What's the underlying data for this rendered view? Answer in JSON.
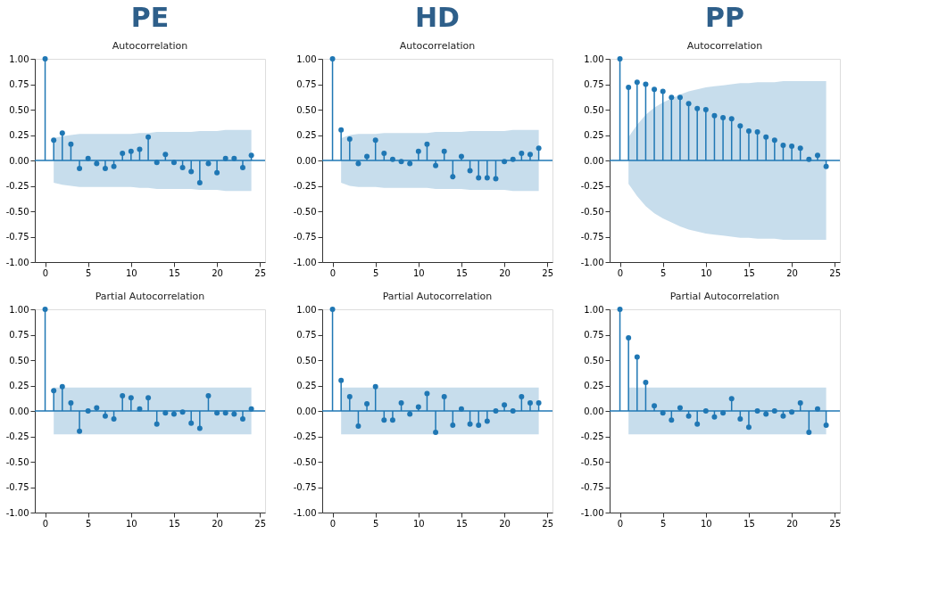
{
  "chart_data": [
    {
      "type": "lollipop",
      "title": "PE",
      "subtitle": "Autocorrelation",
      "marker": "circle",
      "grid": false,
      "x": [
        0,
        1,
        2,
        3,
        4,
        5,
        6,
        7,
        8,
        9,
        10,
        11,
        12,
        13,
        14,
        15,
        16,
        17,
        18,
        19,
        20,
        21,
        22,
        23,
        24
      ],
      "xlim": [
        -1.2,
        25.6
      ],
      "xticks": [
        0,
        5,
        10,
        15,
        20,
        25
      ],
      "ylim": [
        -1,
        1
      ],
      "yticks": [
        {
          "value": -1,
          "label": "-1.00"
        },
        {
          "value": -0.75,
          "label": "-0.75"
        },
        {
          "value": -0.5,
          "label": "-0.50"
        },
        {
          "value": -0.25,
          "label": "-0.25"
        },
        {
          "value": 0,
          "label": "0.00"
        },
        {
          "value": 0.25,
          "label": "0.25"
        },
        {
          "value": 0.5,
          "label": "0.50"
        },
        {
          "value": 0.75,
          "label": "0.75"
        },
        {
          "value": 1,
          "label": "1.00"
        }
      ],
      "ref_lines": [
        {
          "axis": "y",
          "value": 0,
          "color": "#1f77b4"
        }
      ],
      "series": [
        {
          "color": "#1f77b4",
          "values": [
            1,
            0.2,
            0.27,
            0.16,
            -0.08,
            0.02,
            -0.03,
            -0.08,
            -0.06,
            0.07,
            0.09,
            0.11,
            0.23,
            -0.02,
            0.06,
            -0.02,
            -0.07,
            -0.11,
            -0.22,
            -0.03,
            -0.12,
            0.02,
            0.02,
            -0.07,
            0.05
          ],
          "upper": [
            null,
            0.22,
            0.24,
            0.25,
            0.26,
            0.26,
            0.26,
            0.26,
            0.26,
            0.26,
            0.26,
            0.27,
            0.27,
            0.28,
            0.28,
            0.28,
            0.28,
            0.28,
            0.29,
            0.29,
            0.29,
            0.3,
            0.3,
            0.3,
            0.3
          ],
          "lower": [
            null,
            -0.22,
            -0.24,
            -0.25,
            -0.26,
            -0.26,
            -0.26,
            -0.26,
            -0.26,
            -0.26,
            -0.26,
            -0.27,
            -0.27,
            -0.28,
            -0.28,
            -0.28,
            -0.28,
            -0.28,
            -0.29,
            -0.29,
            -0.29,
            -0.3,
            -0.3,
            -0.3,
            -0.3
          ]
        }
      ]
    },
    {
      "type": "lollipop",
      "title": "HD",
      "subtitle": "Autocorrelation",
      "marker": "circle",
      "grid": false,
      "x": [
        0,
        1,
        2,
        3,
        4,
        5,
        6,
        7,
        8,
        9,
        10,
        11,
        12,
        13,
        14,
        15,
        16,
        17,
        18,
        19,
        20,
        21,
        22,
        23,
        24
      ],
      "xlim": [
        -1.2,
        25.6
      ],
      "xticks": [
        0,
        5,
        10,
        15,
        20,
        25
      ],
      "ylim": [
        -1,
        1
      ],
      "yticks": [
        {
          "value": -1,
          "label": "-1.00"
        },
        {
          "value": -0.75,
          "label": "-0.75"
        },
        {
          "value": -0.5,
          "label": "-0.50"
        },
        {
          "value": -0.25,
          "label": "-0.25"
        },
        {
          "value": 0,
          "label": "0.00"
        },
        {
          "value": 0.25,
          "label": "0.25"
        },
        {
          "value": 0.5,
          "label": "0.50"
        },
        {
          "value": 0.75,
          "label": "0.75"
        },
        {
          "value": 1,
          "label": "1.00"
        }
      ],
      "ref_lines": [
        {
          "axis": "y",
          "value": 0,
          "color": "#1f77b4"
        }
      ],
      "series": [
        {
          "color": "#1f77b4",
          "values": [
            1,
            0.3,
            0.21,
            -0.03,
            0.04,
            0.2,
            0.07,
            0.01,
            -0.01,
            -0.03,
            0.09,
            0.16,
            -0.05,
            0.09,
            -0.16,
            0.04,
            -0.1,
            -0.17,
            -0.17,
            -0.18,
            -0.01,
            0.01,
            0.07,
            0.06,
            0.12
          ],
          "upper": [
            null,
            0.22,
            0.25,
            0.26,
            0.26,
            0.26,
            0.27,
            0.27,
            0.27,
            0.27,
            0.27,
            0.27,
            0.28,
            0.28,
            0.28,
            0.28,
            0.29,
            0.29,
            0.29,
            0.29,
            0.29,
            0.3,
            0.3,
            0.3,
            0.3
          ],
          "lower": [
            null,
            -0.22,
            -0.25,
            -0.26,
            -0.26,
            -0.26,
            -0.27,
            -0.27,
            -0.27,
            -0.27,
            -0.27,
            -0.27,
            -0.28,
            -0.28,
            -0.28,
            -0.28,
            -0.29,
            -0.29,
            -0.29,
            -0.29,
            -0.29,
            -0.3,
            -0.3,
            -0.3,
            -0.3
          ]
        }
      ]
    },
    {
      "type": "lollipop",
      "title": "PP",
      "subtitle": "Autocorrelation",
      "marker": "circle",
      "grid": false,
      "x": [
        0,
        1,
        2,
        3,
        4,
        5,
        6,
        7,
        8,
        9,
        10,
        11,
        12,
        13,
        14,
        15,
        16,
        17,
        18,
        19,
        20,
        21,
        22,
        23,
        24
      ],
      "xlim": [
        -1.2,
        25.6
      ],
      "xticks": [
        0,
        5,
        10,
        15,
        20,
        25
      ],
      "ylim": [
        -1,
        1
      ],
      "yticks": [
        {
          "value": -1,
          "label": "-1.00"
        },
        {
          "value": -0.75,
          "label": "-0.75"
        },
        {
          "value": -0.5,
          "label": "-0.50"
        },
        {
          "value": -0.25,
          "label": "-0.25"
        },
        {
          "value": 0,
          "label": "0.00"
        },
        {
          "value": 0.25,
          "label": "0.25"
        },
        {
          "value": 0.5,
          "label": "0.50"
        },
        {
          "value": 0.75,
          "label": "0.75"
        },
        {
          "value": 1,
          "label": "1.00"
        }
      ],
      "ref_lines": [
        {
          "axis": "y",
          "value": 0,
          "color": "#1f77b4"
        }
      ],
      "series": [
        {
          "color": "#1f77b4",
          "values": [
            1,
            0.72,
            0.77,
            0.75,
            0.7,
            0.68,
            0.62,
            0.62,
            0.56,
            0.51,
            0.5,
            0.44,
            0.42,
            0.41,
            0.34,
            0.29,
            0.28,
            0.23,
            0.2,
            0.15,
            0.14,
            0.12,
            0.01,
            0.05,
            -0.06
          ],
          "upper": [
            null,
            0.23,
            0.35,
            0.45,
            0.52,
            0.57,
            0.61,
            0.65,
            0.68,
            0.7,
            0.72,
            0.73,
            0.74,
            0.75,
            0.76,
            0.76,
            0.77,
            0.77,
            0.77,
            0.78,
            0.78,
            0.78,
            0.78,
            0.78,
            0.78
          ],
          "lower": [
            null,
            -0.23,
            -0.35,
            -0.45,
            -0.52,
            -0.57,
            -0.61,
            -0.65,
            -0.68,
            -0.7,
            -0.72,
            -0.73,
            -0.74,
            -0.75,
            -0.76,
            -0.76,
            -0.77,
            -0.77,
            -0.77,
            -0.78,
            -0.78,
            -0.78,
            -0.78,
            -0.78,
            -0.78
          ]
        }
      ]
    },
    {
      "type": "lollipop",
      "subtitle": "Partial Autocorrelation",
      "marker": "circle",
      "grid": false,
      "x": [
        0,
        1,
        2,
        3,
        4,
        5,
        6,
        7,
        8,
        9,
        10,
        11,
        12,
        13,
        14,
        15,
        16,
        17,
        18,
        19,
        20,
        21,
        22,
        23,
        24
      ],
      "xlim": [
        -1.2,
        25.6
      ],
      "xticks": [
        0,
        5,
        10,
        15,
        20,
        25
      ],
      "ylim": [
        -1,
        1
      ],
      "yticks": [
        {
          "value": -1,
          "label": "-1.00"
        },
        {
          "value": -0.75,
          "label": "-0.75"
        },
        {
          "value": -0.5,
          "label": "-0.50"
        },
        {
          "value": -0.25,
          "label": "-0.25"
        },
        {
          "value": 0,
          "label": "0.00"
        },
        {
          "value": 0.25,
          "label": "0.25"
        },
        {
          "value": 0.5,
          "label": "0.50"
        },
        {
          "value": 0.75,
          "label": "0.75"
        },
        {
          "value": 1,
          "label": "1.00"
        }
      ],
      "ref_lines": [
        {
          "axis": "y",
          "value": 0,
          "color": "#1f77b4"
        }
      ],
      "series": [
        {
          "color": "#1f77b4",
          "values": [
            1,
            0.2,
            0.24,
            0.08,
            -0.2,
            0.0,
            0.03,
            -0.05,
            -0.08,
            0.15,
            0.13,
            0.02,
            0.13,
            -0.13,
            -0.02,
            -0.03,
            -0.01,
            -0.12,
            -0.17,
            0.15,
            -0.02,
            -0.02,
            -0.03,
            -0.08,
            0.02
          ],
          "upper": [
            null,
            0.23,
            0.23,
            0.23,
            0.23,
            0.23,
            0.23,
            0.23,
            0.23,
            0.23,
            0.23,
            0.23,
            0.23,
            0.23,
            0.23,
            0.23,
            0.23,
            0.23,
            0.23,
            0.23,
            0.23,
            0.23,
            0.23,
            0.23,
            0.23
          ],
          "lower": [
            null,
            -0.23,
            -0.23,
            -0.23,
            -0.23,
            -0.23,
            -0.23,
            -0.23,
            -0.23,
            -0.23,
            -0.23,
            -0.23,
            -0.23,
            -0.23,
            -0.23,
            -0.23,
            -0.23,
            -0.23,
            -0.23,
            -0.23,
            -0.23,
            -0.23,
            -0.23,
            -0.23,
            -0.23
          ]
        }
      ]
    },
    {
      "type": "lollipop",
      "subtitle": "Partial Autocorrelation",
      "marker": "circle",
      "grid": false,
      "x": [
        0,
        1,
        2,
        3,
        4,
        5,
        6,
        7,
        8,
        9,
        10,
        11,
        12,
        13,
        14,
        15,
        16,
        17,
        18,
        19,
        20,
        21,
        22,
        23,
        24
      ],
      "xlim": [
        -1.2,
        25.6
      ],
      "xticks": [
        0,
        5,
        10,
        15,
        20,
        25
      ],
      "ylim": [
        -1,
        1
      ],
      "yticks": [
        {
          "value": -1,
          "label": "-1.00"
        },
        {
          "value": -0.75,
          "label": "-0.75"
        },
        {
          "value": -0.5,
          "label": "-0.50"
        },
        {
          "value": -0.25,
          "label": "-0.25"
        },
        {
          "value": 0,
          "label": "0.00"
        },
        {
          "value": 0.25,
          "label": "0.25"
        },
        {
          "value": 0.5,
          "label": "0.50"
        },
        {
          "value": 0.75,
          "label": "0.75"
        },
        {
          "value": 1,
          "label": "1.00"
        }
      ],
      "ref_lines": [
        {
          "axis": "y",
          "value": 0,
          "color": "#1f77b4"
        }
      ],
      "series": [
        {
          "color": "#1f77b4",
          "values": [
            1,
            0.3,
            0.14,
            -0.15,
            0.07,
            0.24,
            -0.09,
            -0.09,
            0.08,
            -0.03,
            0.04,
            0.17,
            -0.21,
            0.14,
            -0.14,
            0.02,
            -0.13,
            -0.14,
            -0.1,
            0.0,
            0.06,
            0.0,
            0.14,
            0.08,
            0.08
          ],
          "upper": [
            null,
            0.23,
            0.23,
            0.23,
            0.23,
            0.23,
            0.23,
            0.23,
            0.23,
            0.23,
            0.23,
            0.23,
            0.23,
            0.23,
            0.23,
            0.23,
            0.23,
            0.23,
            0.23,
            0.23,
            0.23,
            0.23,
            0.23,
            0.23,
            0.23
          ],
          "lower": [
            null,
            -0.23,
            -0.23,
            -0.23,
            -0.23,
            -0.23,
            -0.23,
            -0.23,
            -0.23,
            -0.23,
            -0.23,
            -0.23,
            -0.23,
            -0.23,
            -0.23,
            -0.23,
            -0.23,
            -0.23,
            -0.23,
            -0.23,
            -0.23,
            -0.23,
            -0.23,
            -0.23,
            -0.23
          ]
        }
      ]
    },
    {
      "type": "lollipop",
      "subtitle": "Partial Autocorrelation",
      "marker": "circle",
      "grid": false,
      "x": [
        0,
        1,
        2,
        3,
        4,
        5,
        6,
        7,
        8,
        9,
        10,
        11,
        12,
        13,
        14,
        15,
        16,
        17,
        18,
        19,
        20,
        21,
        22,
        23,
        24
      ],
      "xlim": [
        -1.2,
        25.6
      ],
      "xticks": [
        0,
        5,
        10,
        15,
        20,
        25
      ],
      "ylim": [
        -1,
        1
      ],
      "yticks": [
        {
          "value": -1,
          "label": "-1.00"
        },
        {
          "value": -0.75,
          "label": "-0.75"
        },
        {
          "value": -0.5,
          "label": "-0.50"
        },
        {
          "value": -0.25,
          "label": "-0.25"
        },
        {
          "value": 0,
          "label": "0.00"
        },
        {
          "value": 0.25,
          "label": "0.25"
        },
        {
          "value": 0.5,
          "label": "0.50"
        },
        {
          "value": 0.75,
          "label": "0.75"
        },
        {
          "value": 1,
          "label": "1.00"
        }
      ],
      "ref_lines": [
        {
          "axis": "y",
          "value": 0,
          "color": "#1f77b4"
        }
      ],
      "series": [
        {
          "color": "#1f77b4",
          "values": [
            1,
            0.72,
            0.53,
            0.28,
            0.05,
            -0.02,
            -0.09,
            0.03,
            -0.05,
            -0.13,
            0.0,
            -0.06,
            -0.02,
            0.12,
            -0.08,
            -0.16,
            0.0,
            -0.03,
            0.0,
            -0.05,
            -0.01,
            0.08,
            -0.21,
            0.02,
            -0.14
          ],
          "upper": [
            null,
            0.23,
            0.23,
            0.23,
            0.23,
            0.23,
            0.23,
            0.23,
            0.23,
            0.23,
            0.23,
            0.23,
            0.23,
            0.23,
            0.23,
            0.23,
            0.23,
            0.23,
            0.23,
            0.23,
            0.23,
            0.23,
            0.23,
            0.23,
            0.23
          ],
          "lower": [
            null,
            -0.23,
            -0.23,
            -0.23,
            -0.23,
            -0.23,
            -0.23,
            -0.23,
            -0.23,
            -0.23,
            -0.23,
            -0.23,
            -0.23,
            -0.23,
            -0.23,
            -0.23,
            -0.23,
            -0.23,
            -0.23,
            -0.23,
            -0.23,
            -0.23,
            -0.23,
            -0.23,
            -0.23
          ]
        }
      ]
    }
  ]
}
